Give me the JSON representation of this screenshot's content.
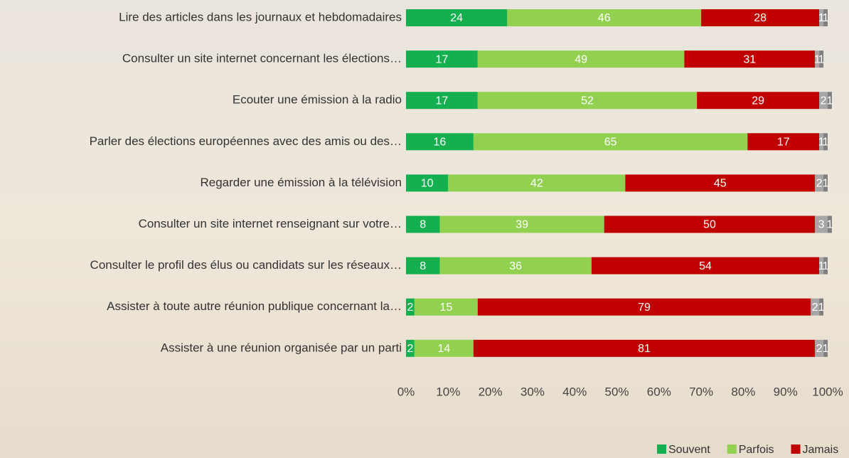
{
  "chart_data": {
    "type": "stacked-bar-horizontal",
    "categories": [
      "Lire des articles dans les journaux et hebdomadaires",
      "Consulter un site internet concernant les élections…",
      "Ecouter une émission à la radio",
      "Parler des élections européennes avec des amis ou des…",
      "Regarder une émission à la télévision",
      "Consulter un site internet renseignant sur votre…",
      "Consulter le profil des élus ou candidats sur les réseaux…",
      "Assister à toute autre réunion publique concernant la…",
      "Assister à une réunion organisée par un parti"
    ],
    "series": [
      {
        "name": "Souvent",
        "color": "#14b050",
        "values": [
          24,
          17,
          17,
          16,
          10,
          8,
          8,
          2,
          2
        ]
      },
      {
        "name": "Parfois",
        "color": "#92d050",
        "values": [
          46,
          49,
          52,
          65,
          42,
          39,
          36,
          15,
          14
        ]
      },
      {
        "name": "Jamais",
        "color": "#c00000",
        "values": [
          28,
          31,
          29,
          17,
          45,
          50,
          54,
          79,
          81
        ]
      },
      {
        "color": "#a6a6a6",
        "values": [
          1,
          1,
          2,
          1,
          2,
          3,
          1,
          2,
          2
        ]
      },
      {
        "color": "#7f7f7f",
        "values": [
          1,
          1,
          1,
          1,
          1,
          1,
          1,
          1,
          1
        ]
      }
    ],
    "xlim": [
      0,
      100
    ],
    "xticks": [
      {
        "value": 0,
        "label": "0%"
      },
      {
        "value": 10,
        "label": "10%"
      },
      {
        "value": 20,
        "label": "20%"
      },
      {
        "value": 30,
        "label": "30%"
      },
      {
        "value": 40,
        "label": "40%"
      },
      {
        "value": 50,
        "label": "50%"
      },
      {
        "value": 60,
        "label": "60%"
      },
      {
        "value": 70,
        "label": "70%"
      },
      {
        "value": 80,
        "label": "80%"
      },
      {
        "value": 90,
        "label": "90%"
      },
      {
        "value": 100,
        "label": "100%"
      }
    ],
    "legend": "bottom-right"
  }
}
